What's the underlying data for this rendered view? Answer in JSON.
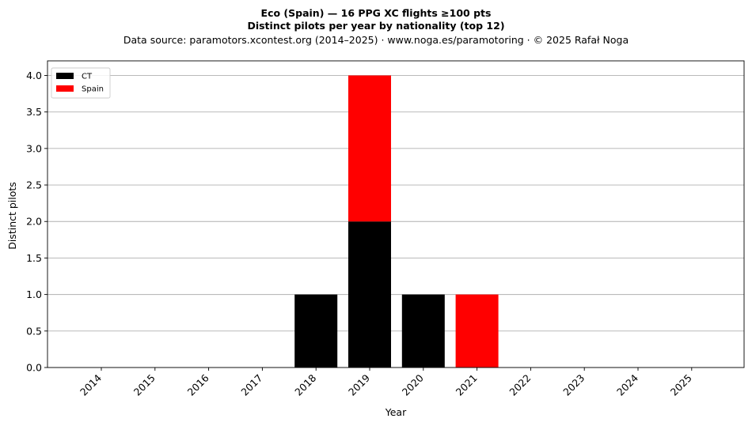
{
  "chart_data": {
    "type": "bar",
    "stacked": true,
    "title_line1": "Eco (Spain)  —  16 PPG XC flights ≥100 pts",
    "title_line2": "Distinct pilots per year by nationality (top 12)",
    "subtitle": "Data source: paramotors.xcontest.org (2014–2025)  ·  www.noga.es/paramotoring  ·  © 2025 Rafał Noga",
    "xlabel": "Year",
    "ylabel": "Distinct pilots",
    "categories": [
      "2014",
      "2015",
      "2016",
      "2017",
      "2018",
      "2019",
      "2020",
      "2021",
      "2022",
      "2023",
      "2024",
      "2025"
    ],
    "series": [
      {
        "name": "CT",
        "color": "#000000",
        "values": [
          0,
          0,
          0,
          0,
          1,
          2,
          1,
          0,
          0,
          0,
          0,
          0
        ]
      },
      {
        "name": "Spain",
        "color": "#ff0000",
        "values": [
          0,
          0,
          0,
          0,
          0,
          2,
          0,
          1,
          0,
          0,
          0,
          0
        ]
      }
    ],
    "ylim": [
      0,
      4.2
    ],
    "yticks": [
      "0.0",
      "0.5",
      "1.0",
      "1.5",
      "2.0",
      "2.5",
      "3.0",
      "3.5",
      "4.0"
    ],
    "grid": "y",
    "legend_position": "top-left"
  }
}
